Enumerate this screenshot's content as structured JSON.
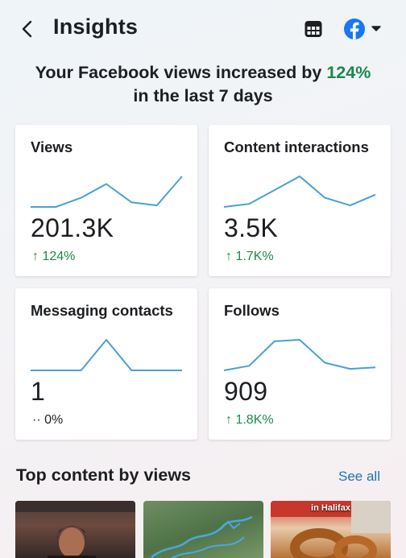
{
  "header": {
    "title": "Insights",
    "back_icon": "chevron-left-icon",
    "calendar_icon": "calendar-icon",
    "platform_icon": "facebook-icon",
    "dropdown_icon": "caret-down-icon"
  },
  "headline": {
    "prefix": "Your Facebook views increased by ",
    "percent": "124%",
    "suffix": "in the last 7 days"
  },
  "colors": {
    "accent_green": "#1a8a4a",
    "spark_blue": "#4a9fd2",
    "link_blue": "#1b74b8",
    "facebook_blue": "#1877f2"
  },
  "cards": [
    {
      "label": "Views",
      "value": "201.3K",
      "change": "↑ 124%",
      "trend": [
        0.0,
        0.0,
        0.3,
        0.75,
        0.15,
        0.05,
        1.0
      ]
    },
    {
      "label": "Content interactions",
      "value": "3.5K",
      "change": "↑ 1.7K%",
      "trend": [
        0.0,
        0.1,
        0.55,
        1.0,
        0.3,
        0.05,
        0.4
      ]
    },
    {
      "label": "Messaging contacts",
      "value": "1",
      "change": "·· 0%",
      "trend": [
        0.0,
        0.0,
        0.0,
        1.0,
        0.0,
        0.0,
        0.0
      ]
    },
    {
      "label": "Follows",
      "value": "909",
      "change": "↑ 1.8K%",
      "trend": [
        0.0,
        0.15,
        0.95,
        1.0,
        0.25,
        0.05,
        0.1
      ]
    }
  ],
  "top_content": {
    "title": "Top content by views",
    "see_all": "See all",
    "thumbnails": [
      {
        "caption": ""
      },
      {
        "caption": ""
      },
      {
        "caption": "in    Halifax"
      }
    ]
  }
}
